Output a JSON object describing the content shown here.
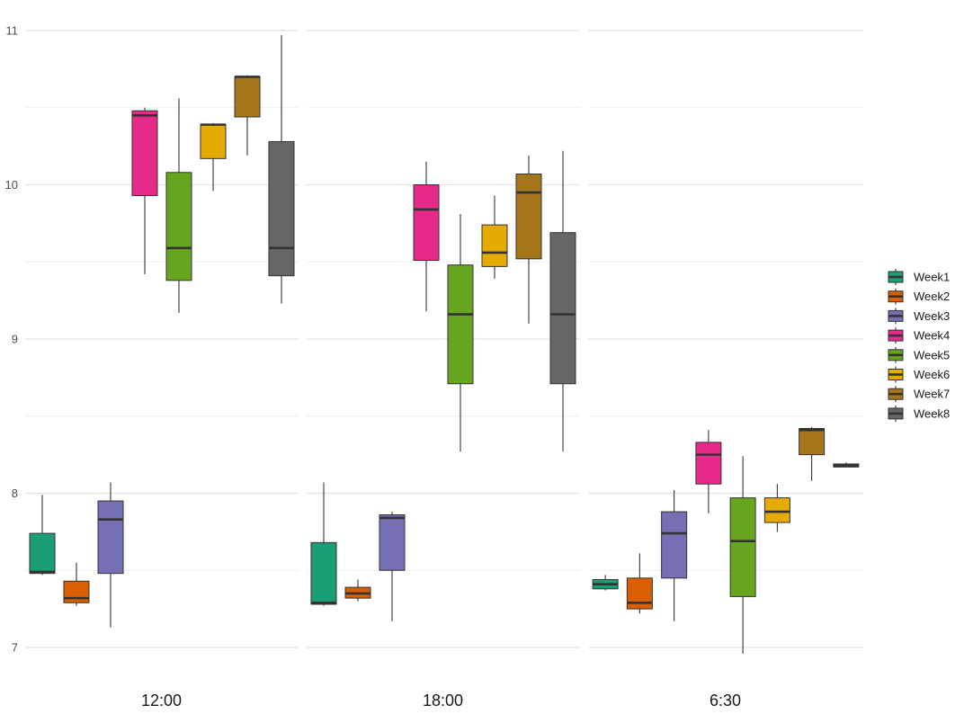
{
  "chart_data": {
    "type": "boxplot",
    "title": "",
    "xlabel": "",
    "ylabel": "",
    "ylim": [
      6.9,
      11.1
    ],
    "y_ticks": [
      7,
      8,
      9,
      10,
      11
    ],
    "grid": true,
    "legend_position": "right",
    "facets": [
      "12:00",
      "18:00",
      "6:30"
    ],
    "series": [
      {
        "name": "Week1",
        "color": "#1b9e77"
      },
      {
        "name": "Week2",
        "color": "#d95f02"
      },
      {
        "name": "Week3",
        "color": "#7570b3"
      },
      {
        "name": "Week4",
        "color": "#e7298a"
      },
      {
        "name": "Week5",
        "color": "#66a61e"
      },
      {
        "name": "Week6",
        "color": "#e6ab02"
      },
      {
        "name": "Week7",
        "color": "#a6761d"
      },
      {
        "name": "Week8",
        "color": "#666666"
      }
    ],
    "boxes": {
      "12:00": [
        {
          "series": "Week1",
          "min": 7.47,
          "q1": 7.48,
          "median": 7.49,
          "q3": 7.74,
          "max": 7.99
        },
        {
          "series": "Week2",
          "min": 7.27,
          "q1": 7.29,
          "median": 7.32,
          "q3": 7.43,
          "max": 7.55
        },
        {
          "series": "Week3",
          "min": 7.13,
          "q1": 7.48,
          "median": 7.83,
          "q3": 7.95,
          "max": 8.07
        },
        {
          "series": "Week4",
          "min": 9.42,
          "q1": 9.93,
          "median": 10.45,
          "q3": 10.48,
          "max": 10.5
        },
        {
          "series": "Week5",
          "min": 9.17,
          "q1": 9.38,
          "median": 9.59,
          "q3": 10.08,
          "max": 10.56
        },
        {
          "series": "Week6",
          "min": 9.96,
          "q1": 10.17,
          "median": 10.39,
          "q3": 10.39,
          "max": 10.4
        },
        {
          "series": "Week7",
          "min": 10.19,
          "q1": 10.44,
          "median": 10.7,
          "q3": 10.7,
          "max": 10.71
        },
        {
          "series": "Week8",
          "min": 9.23,
          "q1": 9.41,
          "median": 9.59,
          "q3": 10.28,
          "max": 10.97
        }
      ],
      "18:00": [
        {
          "series": "Week1",
          "min": 7.27,
          "q1": 7.28,
          "median": 7.29,
          "q3": 7.68,
          "max": 8.07
        },
        {
          "series": "Week2",
          "min": 7.3,
          "q1": 7.32,
          "median": 7.35,
          "q3": 7.39,
          "max": 7.44
        },
        {
          "series": "Week3",
          "min": 7.17,
          "q1": 7.5,
          "median": 7.84,
          "q3": 7.86,
          "max": 7.88
        },
        {
          "series": "Week4",
          "min": 9.18,
          "q1": 9.51,
          "median": 9.84,
          "q3": 10.0,
          "max": 10.15
        },
        {
          "series": "Week5",
          "min": 8.27,
          "q1": 8.71,
          "median": 9.16,
          "q3": 9.48,
          "max": 9.81
        },
        {
          "series": "Week6",
          "min": 9.39,
          "q1": 9.47,
          "median": 9.56,
          "q3": 9.74,
          "max": 9.93
        },
        {
          "series": "Week7",
          "min": 9.1,
          "q1": 9.52,
          "median": 9.95,
          "q3": 10.07,
          "max": 10.19
        },
        {
          "series": "Week8",
          "min": 8.27,
          "q1": 8.71,
          "median": 9.16,
          "q3": 9.69,
          "max": 10.22
        }
      ],
      "6:30": [
        {
          "series": "Week1",
          "min": 7.37,
          "q1": 7.38,
          "median": 7.41,
          "q3": 7.44,
          "max": 7.47
        },
        {
          "series": "Week2",
          "min": 7.22,
          "q1": 7.25,
          "median": 7.29,
          "q3": 7.45,
          "max": 7.61
        },
        {
          "series": "Week3",
          "min": 7.17,
          "q1": 7.45,
          "median": 7.74,
          "q3": 7.88,
          "max": 8.02
        },
        {
          "series": "Week4",
          "min": 7.87,
          "q1": 8.06,
          "median": 8.25,
          "q3": 8.33,
          "max": 8.41
        },
        {
          "series": "Week5",
          "min": 6.96,
          "q1": 7.33,
          "median": 7.69,
          "q3": 7.97,
          "max": 8.24
        },
        {
          "series": "Week6",
          "min": 7.75,
          "q1": 7.81,
          "median": 7.88,
          "q3": 7.97,
          "max": 8.06
        },
        {
          "series": "Week7",
          "min": 8.08,
          "q1": 8.25,
          "median": 8.41,
          "q3": 8.42,
          "max": 8.43
        },
        {
          "series": "Week8",
          "min": 8.17,
          "q1": 8.17,
          "median": 8.18,
          "q3": 8.19,
          "max": 8.2
        }
      ]
    }
  }
}
